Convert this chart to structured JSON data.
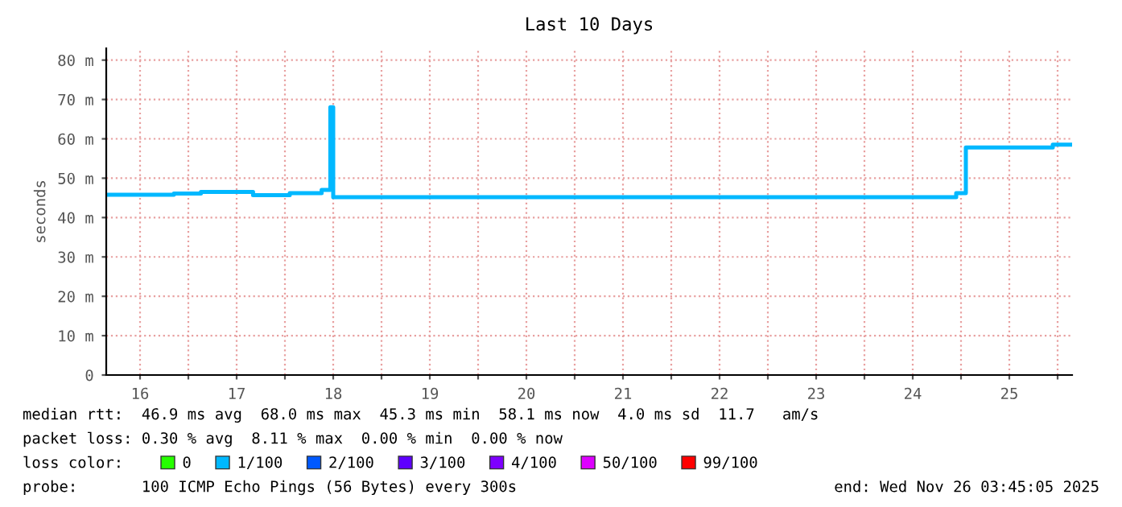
{
  "chart_data": {
    "type": "step",
    "title": "Last 10 Days",
    "ylabel": "seconds",
    "legend_title": "loss color:",
    "x": [
      16.15,
      16.85,
      17.13,
      17.67,
      18.05,
      18.38,
      18.47,
      18.5,
      24.95,
      25.05,
      25.95,
      26.15
    ],
    "series": [
      {
        "color": "#00b8ff",
        "values": [
          45.8,
          46.1,
          46.5,
          45.7,
          46.2,
          47,
          68,
          45.2,
          46.2,
          57.8,
          58.5,
          58.5
        ]
      },
      {
        "name": "0",
        "color": "#26ff00",
        "values": [
          null,
          null,
          null,
          null,
          null,
          null,
          null,
          null,
          null,
          null,
          null,
          null
        ]
      },
      {
        "name": "1/100",
        "color": "#00b8ff",
        "values": [
          null,
          null,
          null,
          null,
          null,
          null,
          null,
          null,
          null,
          null,
          null,
          null
        ]
      },
      {
        "name": "2/100",
        "color": "#0059ff",
        "values": [
          null,
          null,
          null,
          null,
          null,
          null,
          null,
          null,
          null,
          null,
          null,
          null
        ]
      },
      {
        "name": "3/100",
        "color": "#5e00ff",
        "values": [
          null,
          null,
          null,
          null,
          null,
          null,
          null,
          null,
          null,
          null,
          null,
          null
        ]
      },
      {
        "name": "4/100",
        "color": "#7e00ff",
        "values": [
          null,
          null,
          null,
          null,
          null,
          null,
          null,
          null,
          null,
          null,
          null,
          null
        ]
      },
      {
        "name": "50/100",
        "color": "#dd00ff",
        "values": [
          null,
          null,
          null,
          null,
          null,
          null,
          null,
          null,
          null,
          null,
          null,
          null
        ]
      },
      {
        "name": "99/100",
        "color": "#ff0000",
        "values": [
          null,
          null,
          null,
          null,
          null,
          null,
          null,
          null,
          null,
          null,
          null,
          null
        ]
      }
    ],
    "xlim": [
      16.15,
      26.15
    ],
    "xticks": [
      {
        "value": 16.5,
        "label": "16"
      },
      {
        "value": 17,
        "label": null
      },
      {
        "value": 17.5,
        "label": "17"
      },
      {
        "value": 18,
        "label": null
      },
      {
        "value": 18.5,
        "label": "18"
      },
      {
        "value": 19,
        "label": null
      },
      {
        "value": 19.5,
        "label": "19"
      },
      {
        "value": 20,
        "label": null
      },
      {
        "value": 20.5,
        "label": "20"
      },
      {
        "value": 21,
        "label": null
      },
      {
        "value": 21.5,
        "label": "21"
      },
      {
        "value": 22,
        "label": null
      },
      {
        "value": 22.5,
        "label": "22"
      },
      {
        "value": 23,
        "label": null
      },
      {
        "value": 23.5,
        "label": "23"
      },
      {
        "value": 24,
        "label": null
      },
      {
        "value": 24.5,
        "label": "24"
      },
      {
        "value": 25,
        "label": null
      },
      {
        "value": 25.5,
        "label": "25"
      },
      {
        "value": 26,
        "label": null
      }
    ],
    "ylim": [
      0,
      83
    ],
    "yticks": [
      0,
      {
        "value": 10,
        "label": "10 m"
      },
      {
        "value": 20,
        "label": "20 m"
      },
      {
        "value": 30,
        "label": "30 m"
      },
      {
        "value": 40,
        "label": "40 m"
      },
      {
        "value": 50,
        "label": "50 m"
      },
      {
        "value": 60,
        "label": "60 m"
      },
      {
        "value": 70,
        "label": "70 m"
      },
      {
        "value": 80,
        "label": "80 m"
      }
    ],
    "grid": true,
    "legend": "bottom",
    "line_style": "solid",
    "marker": "none",
    "annotations": [
      "median rtt:  46.9 ms avg  68.0 ms max  45.3 ms min  58.1 ms now  4.0 ms sd  11.7   am/s",
      "packet loss: 0.30 % avg  8.11 % max  0.00 % min  0.00 % now",
      "probe:       100 ICMP Echo Pings (56 Bytes) every 300s",
      "end: Wed Nov 26 03:45:05 2025"
    ]
  }
}
